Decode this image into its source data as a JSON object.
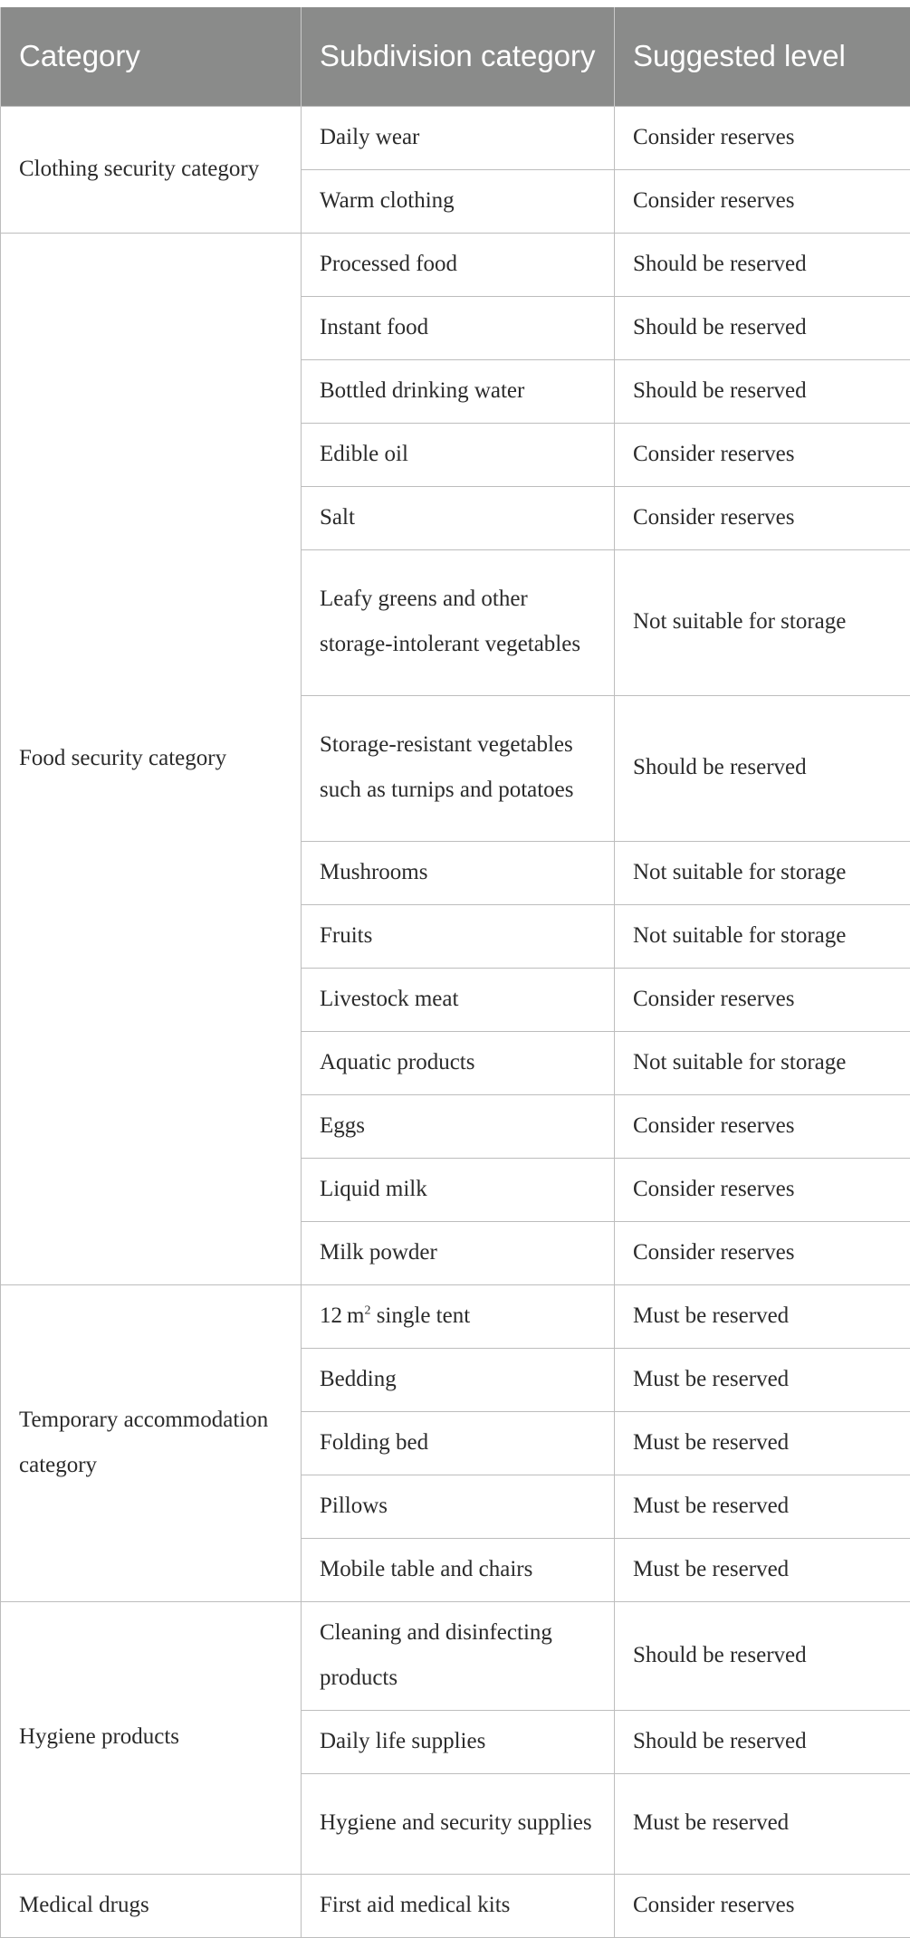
{
  "table": {
    "headers": [
      "Category",
      "Subdivision category",
      "Suggested level"
    ],
    "groups": [
      {
        "category": "Clothing security category",
        "rows": [
          {
            "subdivision": "Daily wear",
            "level": "Consider reserves"
          },
          {
            "subdivision": "Warm clothing",
            "level": "Consider reserves"
          }
        ]
      },
      {
        "category": "Food security category",
        "rows": [
          {
            "subdivision": "Processed food",
            "level": "Should be reserved"
          },
          {
            "subdivision": "Instant food",
            "level": "Should be reserved"
          },
          {
            "subdivision": "Bottled drinking water",
            "level": "Should be reserved"
          },
          {
            "subdivision": "Edible oil",
            "level": "Consider reserves"
          },
          {
            "subdivision": "Salt",
            "level": "Consider reserves"
          },
          {
            "subdivision": "Leafy greens and other storage-intolerant vegetables",
            "level": "Not suitable for storage"
          },
          {
            "subdivision": "Storage-resistant vegetables such as turnips and potatoes",
            "level": "Should be reserved"
          },
          {
            "subdivision": "Mushrooms",
            "level": "Not suitable for storage"
          },
          {
            "subdivision": "Fruits",
            "level": "Not suitable for storage"
          },
          {
            "subdivision": "Livestock meat",
            "level": "Consider reserves"
          },
          {
            "subdivision": "Aquatic products",
            "level": "Not suitable for storage"
          },
          {
            "subdivision": "Eggs",
            "level": "Consider reserves"
          },
          {
            "subdivision": "Liquid milk",
            "level": "Consider reserves"
          },
          {
            "subdivision": "Milk powder",
            "level": "Consider reserves"
          }
        ]
      },
      {
        "category": "Temporary accommodation category",
        "rows": [
          {
            "subdivision": "12 m",
            "sup": "2",
            "subdivision_suffix": " single tent",
            "level": "Must be reserved"
          },
          {
            "subdivision": "Bedding",
            "level": "Must be reserved"
          },
          {
            "subdivision": "Folding bed",
            "level": "Must be reserved"
          },
          {
            "subdivision": "Pillows",
            "level": "Must be reserved"
          },
          {
            "subdivision": "Mobile table and chairs",
            "level": "Must be reserved"
          }
        ]
      },
      {
        "category": "Hygiene products",
        "rows": [
          {
            "subdivision": "Cleaning and disinfecting products",
            "level": "Should be reserved"
          },
          {
            "subdivision": "Daily life supplies",
            "level": "Should be reserved"
          },
          {
            "subdivision": "Hygiene and security supplies",
            "level": "Must be reserved"
          }
        ]
      },
      {
        "category": "Medical drugs",
        "rows": [
          {
            "subdivision": "First aid medical kits",
            "level": "Consider reserves"
          }
        ]
      }
    ]
  }
}
